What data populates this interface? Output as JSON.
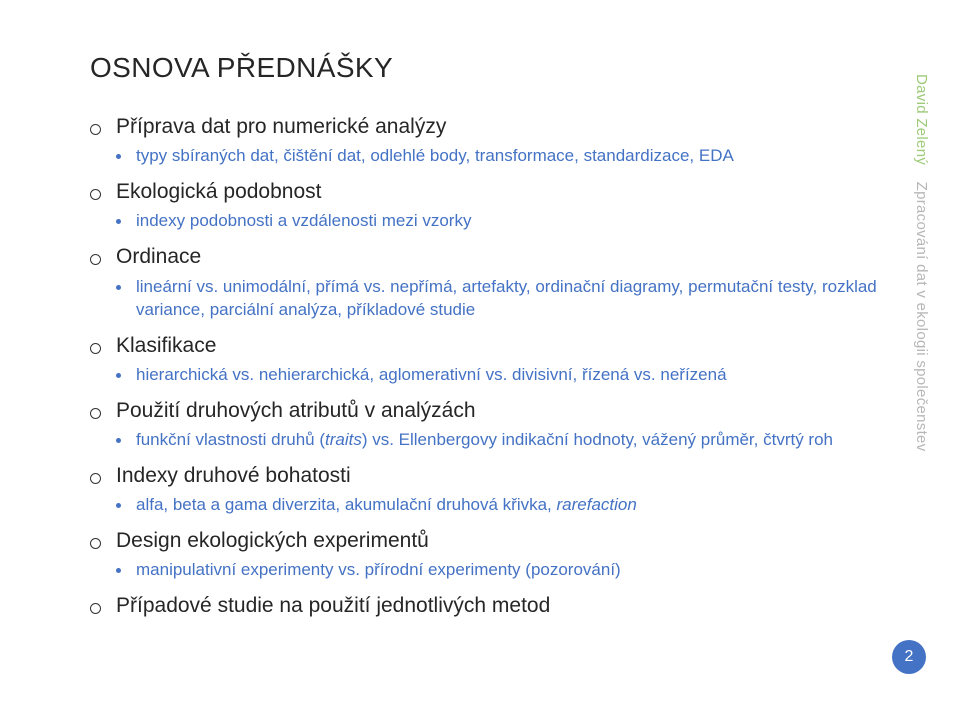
{
  "title": "OSNOVA PŘEDNÁŠKY",
  "side": {
    "author": "David Zelený",
    "subtitle": "Zpracování dat v ekologii společenstev"
  },
  "page_number": "2",
  "sections": [
    {
      "heading": "Příprava dat pro numerické analýzy",
      "sub": "typy sbíraných dat, čištění dat, odlehlé body, transformace, standardizace, EDA"
    },
    {
      "heading": "Ekologická podobnost",
      "sub": "indexy podobnosti a vzdálenosti mezi vzorky"
    },
    {
      "heading": "Ordinace",
      "sub": "lineární vs. unimodální, přímá vs. nepřímá, artefakty, ordinační diagramy, permutační testy, rozklad variance, parciální analýza, příkladové studie"
    },
    {
      "heading": "Klasifikace",
      "sub": "hierarchická vs. nehierarchická, aglomerativní vs. divisivní, řízená vs. neřízená"
    },
    {
      "heading": "Použití druhových atributů v analýzách",
      "sub_html": "funkční vlastnosti druhů (<em>traits</em>) vs. Ellenbergovy indikační hodnoty, vážený průměr, čtvrtý roh"
    },
    {
      "heading": "Indexy druhové bohatosti",
      "sub_html": "alfa, beta a gama diverzita, akumulační druhová křivka, <em>rarefaction</em>"
    },
    {
      "heading": "Design ekologických experimentů",
      "sub": "manipulativní experimenty vs. přírodní experimenty (pozorování)"
    },
    {
      "heading": "Případové studie na použití jednotlivých metod"
    }
  ],
  "colors": {
    "title": "#262626",
    "heading": "#262626",
    "sub": "#4472c4",
    "author": "#9ecb7a",
    "side": "#b7b7b7",
    "badge_bg": "#4472c4",
    "badge_fg": "#ffffff",
    "bg": "#ffffff"
  }
}
